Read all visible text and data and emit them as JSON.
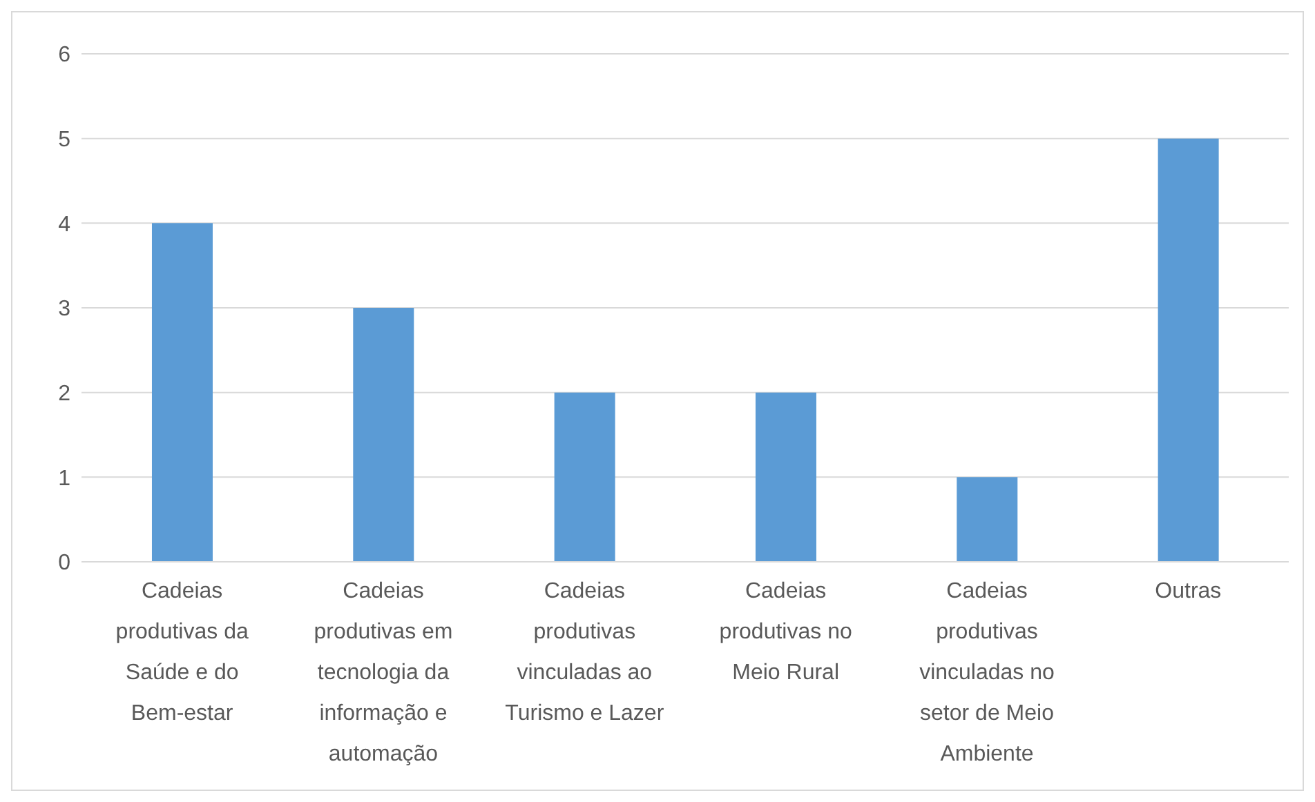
{
  "chart_data": {
    "type": "bar",
    "categories": [
      "Cadeias produtivas da Saúde e do Bem-estar",
      "Cadeias produtivas em tecnologia da informação e automação",
      "Cadeias produtivas vinculadas ao Turismo e Lazer",
      "Cadeias produtivas no Meio Rural",
      "Cadeias produtivas vinculadas no setor de Meio Ambiente",
      "Outras"
    ],
    "values": [
      4,
      3,
      2,
      2,
      1,
      5
    ],
    "color": "#5b9bd5",
    "ylim": [
      0,
      6
    ],
    "yticks": [
      0,
      1,
      2,
      3,
      4,
      5,
      6
    ],
    "grid": "y",
    "legend": false
  }
}
